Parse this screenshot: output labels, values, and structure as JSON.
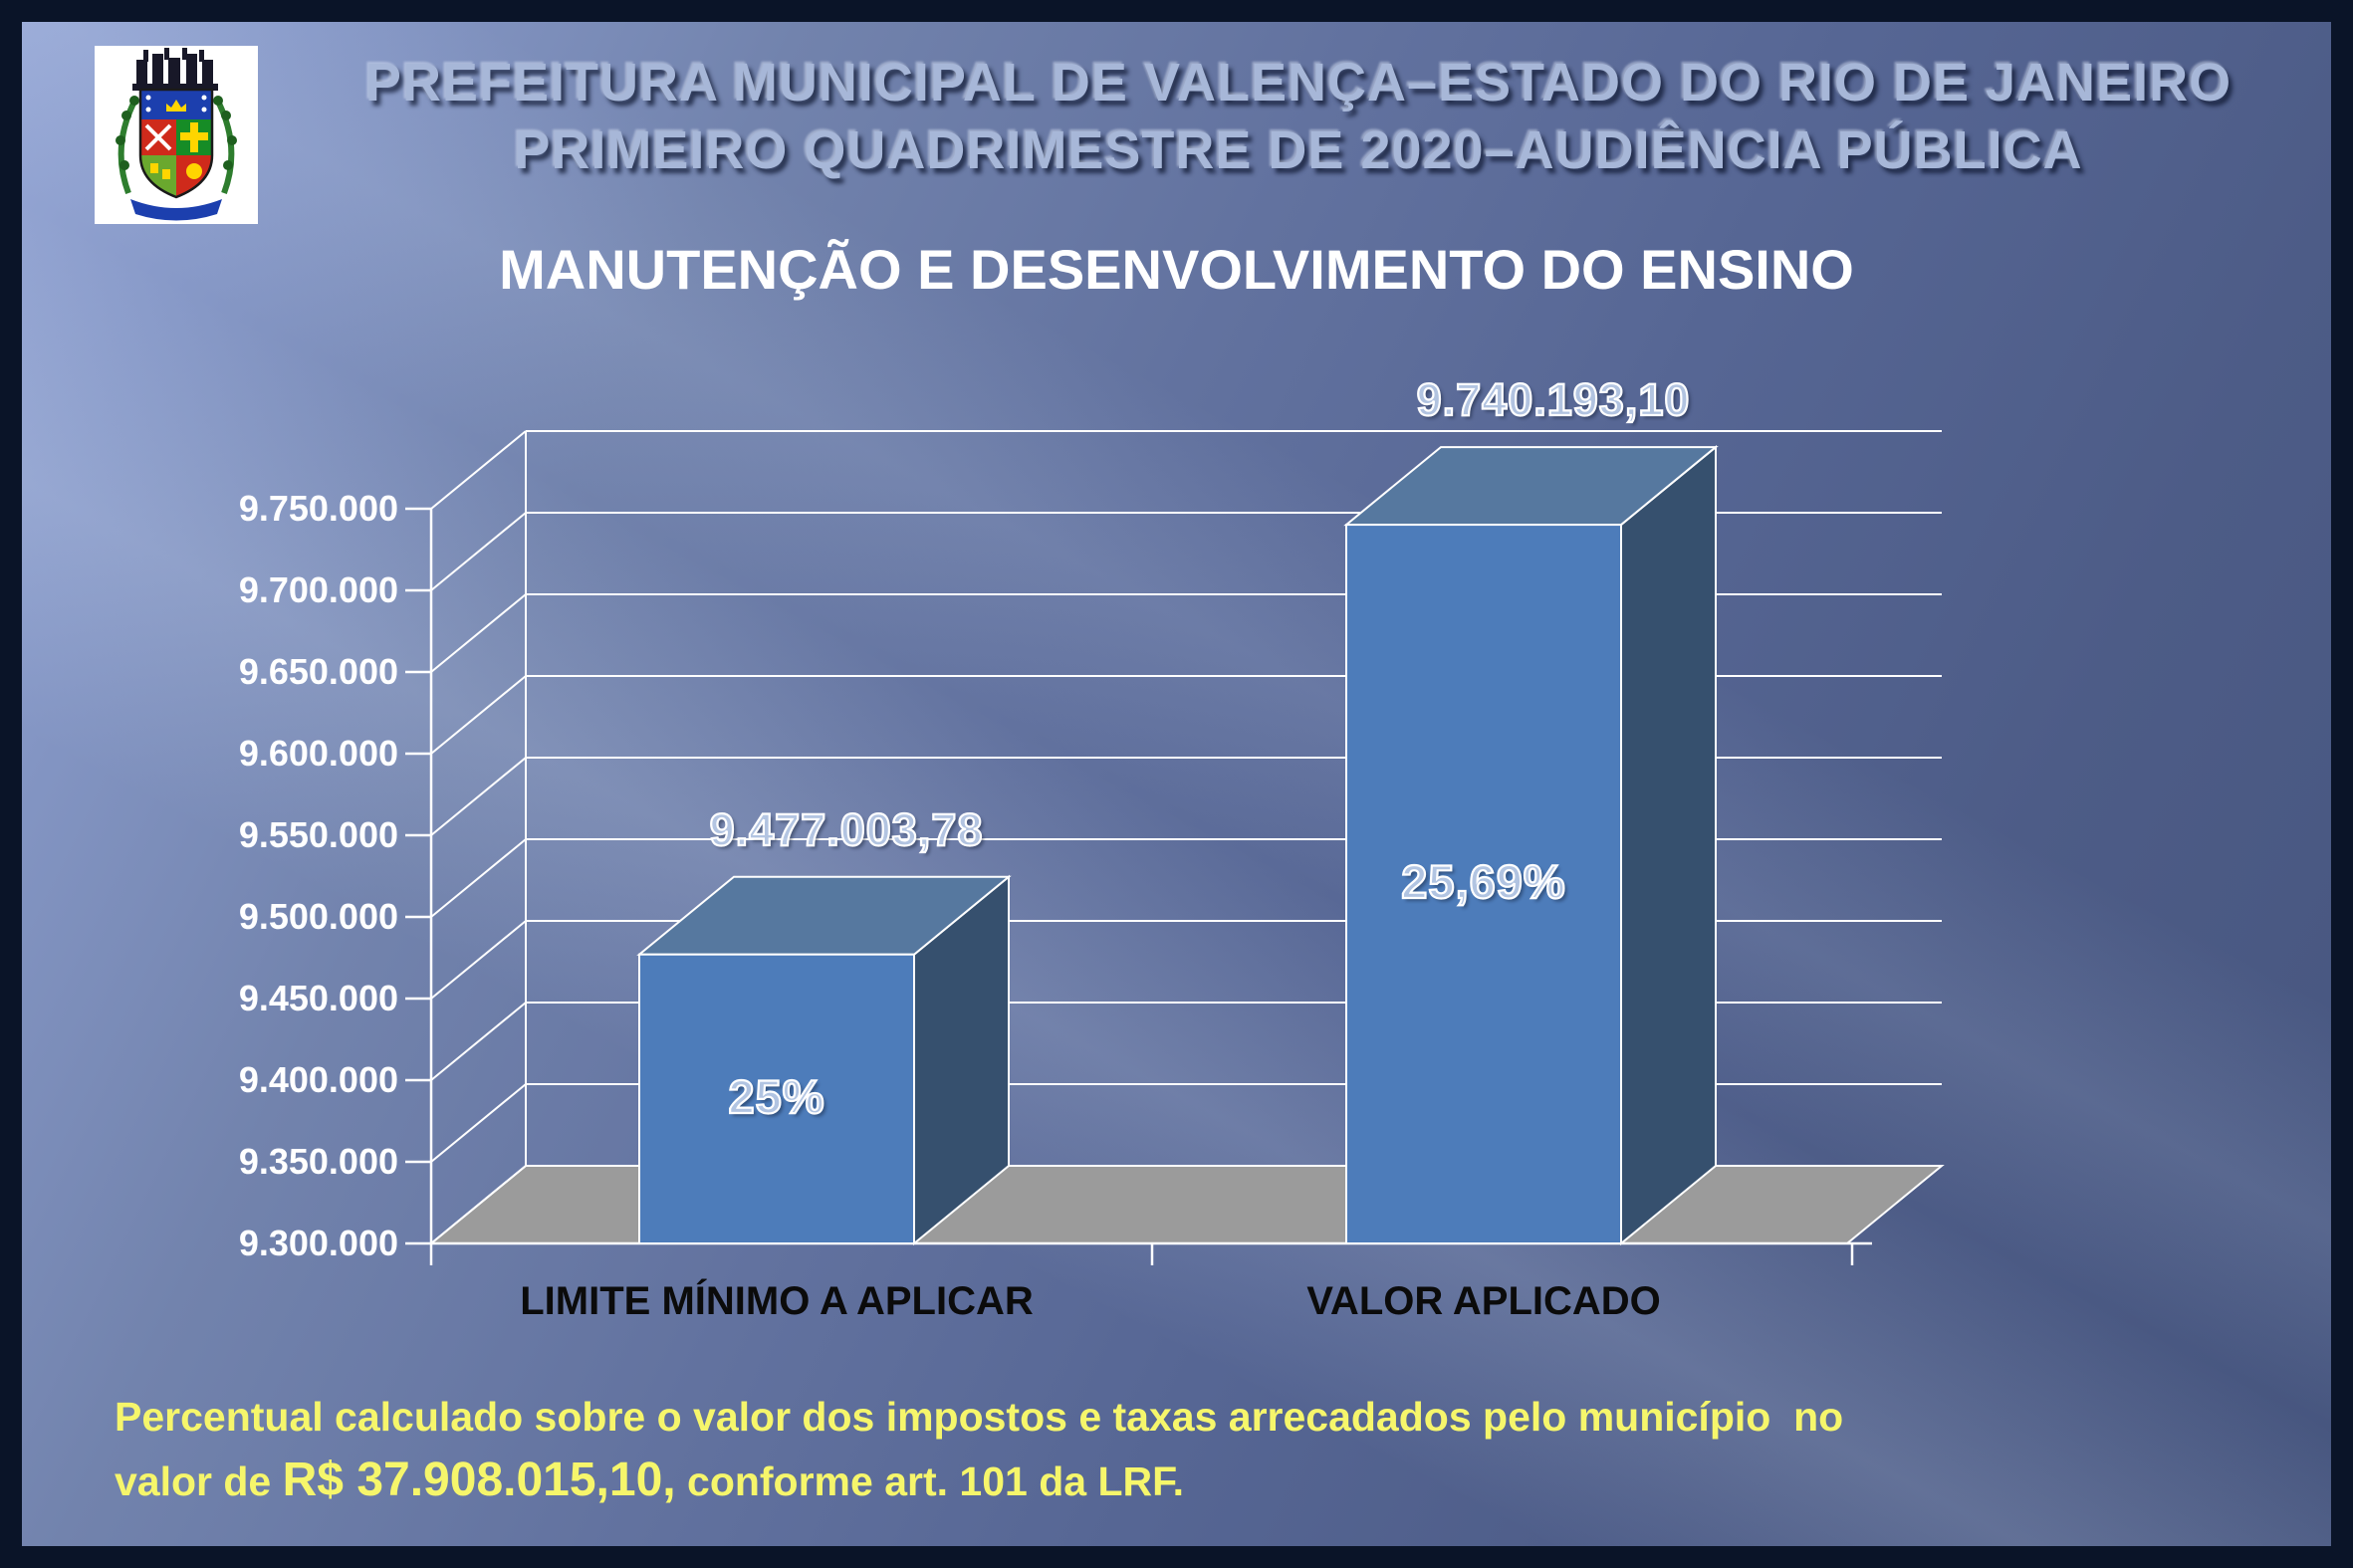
{
  "header": {
    "title_line1": "PREFEITURA MUNICIPAL DE VALENÇA–ESTADO DO RIO DE JANEIRO",
    "title_line2": "PRIMEIRO QUADRIMESTRE DE 2020–AUDIÊNCIA PÚBLICA",
    "logo": "valenca-coat-of-arms"
  },
  "chart_data": {
    "type": "bar",
    "style": "3d-column",
    "title": "MANUTENÇÃO E DESENVOLVIMENTO DO ENSINO",
    "categories": [
      "LIMITE MÍNIMO A APLICAR",
      "VALOR APLICADO"
    ],
    "values": [
      9477003.78,
      9740193.1
    ],
    "value_labels": [
      "9.477.003,78",
      "9.740.193,10"
    ],
    "bar_annotations": [
      "25%",
      "25,69%"
    ],
    "ylim": [
      9300000,
      9750000
    ],
    "ytick_step": 50000,
    "ytick_labels": [
      "9.750.000",
      "9.700.000",
      "9.650.000",
      "9.600.000",
      "9.550.000",
      "9.500.000",
      "9.450.000",
      "9.400.000",
      "9.350.000",
      "9.300.000"
    ],
    "grid": "on",
    "legend": "none",
    "colors": {
      "bar_front": "#4d7cba",
      "bar_top": "#56789f",
      "bar_side": "#36506e",
      "floor": "#9b9b9b",
      "gridline": "#ffffff",
      "axis_text": "#ffffff",
      "category_text": "#0b0b0b"
    }
  },
  "footer": {
    "line1": "Percentual calculado sobre o valor dos impostos e taxas arrecadados pelo município  no",
    "line2_prefix": "valor de ",
    "line2_amount": "R$ 37.908.015,10,",
    "line2_suffix": " conforme art. 101 da LRF.",
    "text_color": "#f6f66b"
  }
}
